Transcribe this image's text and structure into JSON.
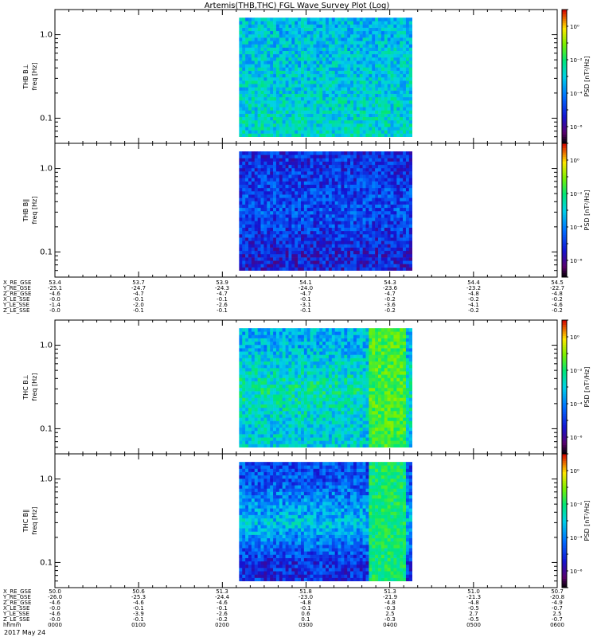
{
  "title": "Artemis(THB,THC) FGL Wave Survey Plot (Log)",
  "date_label": "2017 May 24",
  "colorbar_label": "PSD [nT²/Hz]",
  "colorbar_ticks": [
    "10⁰",
    "10⁻²",
    "10⁻⁴",
    "10⁻⁶"
  ],
  "colors": {
    "frame": "#000000",
    "data_colormap": "rainbow (black-purple-blue-cyan-green-yellow-red)"
  },
  "chart_data": [
    {
      "type": "heatmap",
      "panel": "THB B⊥",
      "ylabel": "THB B⊥",
      "yunit": "freq [Hz]",
      "ylim": [
        0.05,
        2.0
      ],
      "yscale": "log",
      "yticks": [
        "1.0",
        "0.1"
      ],
      "data_range_hhmm": [
        "0212",
        "0416"
      ],
      "color_scale": {
        "label": "PSD [nT²/Hz]",
        "log": true,
        "range": [
          1e-07,
          10.0
        ]
      },
      "dominant_log10_psd_by_band": [
        {
          "freq": 1.0,
          "level": -3.2
        },
        {
          "freq": 0.3,
          "level": -3.0
        },
        {
          "freq": 0.1,
          "level": -2.8
        }
      ]
    },
    {
      "type": "heatmap",
      "panel": "THB B∥",
      "ylabel": "THB B∥",
      "yunit": "freq [Hz]",
      "ylim": [
        0.05,
        2.0
      ],
      "yscale": "log",
      "yticks": [
        "1.0",
        "0.1"
      ],
      "data_range_hhmm": [
        "0212",
        "0416"
      ],
      "color_scale": {
        "label": "PSD [nT²/Hz]",
        "log": true,
        "range": [
          1e-07,
          10.0
        ]
      },
      "dominant_log10_psd_by_band": [
        {
          "freq": 1.0,
          "level": -5.0
        },
        {
          "freq": 0.3,
          "level": -4.6
        },
        {
          "freq": 0.1,
          "level": -5.3
        }
      ]
    },
    {
      "type": "heatmap",
      "panel": "THC B⊥",
      "ylabel": "THC B⊥",
      "yunit": "freq [Hz]",
      "ylim": [
        0.05,
        2.0
      ],
      "yscale": "log",
      "yticks": [
        "1.0",
        "0.1"
      ],
      "data_range_hhmm": [
        "0212",
        "0416"
      ],
      "color_scale": {
        "label": "PSD [nT²/Hz]",
        "log": true,
        "range": [
          1e-07,
          10.0
        ]
      },
      "dominant_log10_psd_by_band": [
        {
          "freq": 1.0,
          "level": -3.4
        },
        {
          "freq": 0.3,
          "level": -2.4
        },
        {
          "freq": 0.1,
          "level": -3.0
        }
      ],
      "enhancement": {
        "time_range_hhmm": [
          "0345",
          "0412"
        ],
        "log10_psd": -1.5
      }
    },
    {
      "type": "heatmap",
      "panel": "THC B∥",
      "ylabel": "THC B∥",
      "yunit": "freq [Hz]",
      "ylim": [
        0.05,
        2.0
      ],
      "yscale": "log",
      "yticks": [
        "1.0",
        "0.1"
      ],
      "data_range_hhmm": [
        "0212",
        "0416"
      ],
      "color_scale": {
        "label": "PSD [nT²/Hz]",
        "log": true,
        "range": [
          1e-07,
          10.0
        ]
      },
      "dominant_log10_psd_by_band": [
        {
          "freq": 1.0,
          "level": -4.6
        },
        {
          "freq": 0.3,
          "level": -3.2
        },
        {
          "freq": 0.1,
          "level": -5.0
        }
      ],
      "enhancement": {
        "time_range_hhmm": [
          "0345",
          "0412"
        ],
        "log10_psd": -2.0
      }
    }
  ],
  "ephem_thb": {
    "labels": [
      "X_RE_GSE",
      "Y_RE_GSE",
      "Z_RE_GSE",
      "X_LE_SSE",
      "Y_LE_SSE",
      "Z_LE_SSE"
    ],
    "columns": [
      [
        "53.4",
        "-25.1",
        "-4.6",
        "-0.0",
        "-1.4",
        "-0.0"
      ],
      [
        "53.7",
        "-24.7",
        "-4.7",
        "-0.1",
        "-2.0",
        "-0.1"
      ],
      [
        "53.9",
        "-24.3",
        "-4.7",
        "-0.1",
        "-2.6",
        "-0.1"
      ],
      [
        "54.1",
        "-24.0",
        "-4.7",
        "-0.1",
        "-3.1",
        "-0.1"
      ],
      [
        "54.3",
        "-23.6",
        "-4.7",
        "-0.2",
        "-3.6",
        "-0.2"
      ],
      [
        "54.4",
        "-23.2",
        "-4.8",
        "-0.2",
        "-4.1",
        "-0.2"
      ],
      [
        "54.5",
        "-22.7",
        "-4.8",
        "-0.2",
        "-4.6",
        "-0.2"
      ]
    ]
  },
  "ephem_thc": {
    "labels": [
      "X_RE_GSE",
      "Y_RE_GSE",
      "Z_RE_GSE",
      "X_LE_SSE",
      "Y_LE_SSE",
      "Z_LE_SSE",
      "hhmm"
    ],
    "columns": [
      [
        "50.0",
        "-26.0",
        "-4.6",
        "-0.0",
        "-4.6",
        "-0.0",
        "0000"
      ],
      [
        "50.6",
        "-25.3",
        "-4.6",
        "-0.1",
        "-3.9",
        "-0.1",
        "0100"
      ],
      [
        "51.3",
        "-24.4",
        "-4.6",
        "-0.1",
        "-2.6",
        "-0.2",
        "0200"
      ],
      [
        "51.8",
        "-23.0",
        "-4.8",
        "-0.1",
        "0.6",
        "0.1",
        "0300"
      ],
      [
        "51.3",
        "-21.9",
        "-4.8",
        "-0.3",
        "2.5",
        "-0.3",
        "0400"
      ],
      [
        "51.0",
        "-21.3",
        "-4.8",
        "-0.5",
        "2.7",
        "-0.5",
        "0500"
      ],
      [
        "50.7",
        "-20.8",
        "-4.9",
        "-0.7",
        "2.5",
        "-0.7",
        "0600"
      ]
    ]
  }
}
